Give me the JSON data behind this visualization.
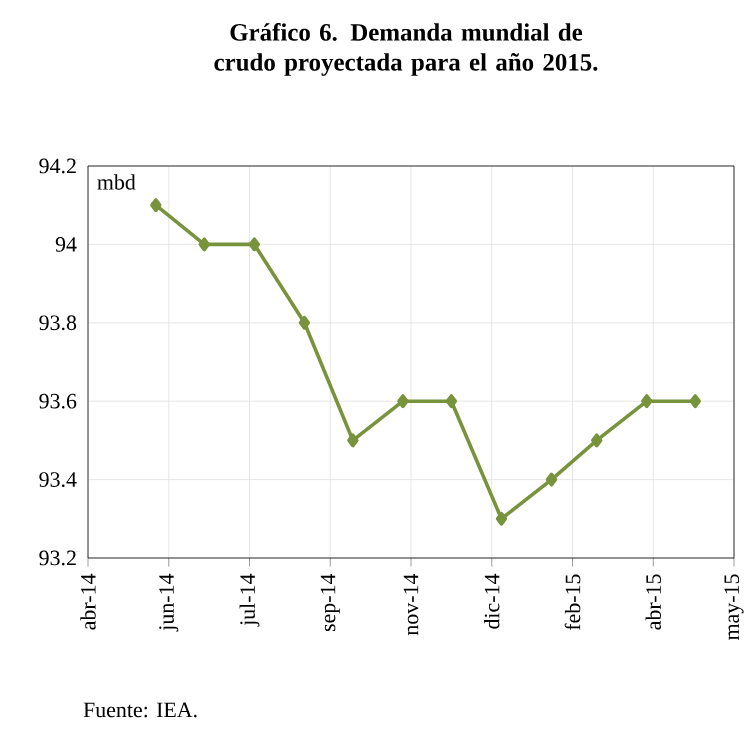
{
  "chart_data": {
    "type": "line",
    "title": "Gráfico 6. Demanda mundial de crudo proyectada para el año 2015.",
    "ylabel": "mbd",
    "x": [
      "2014-06-01",
      "2014-07-01",
      "2014-08-01",
      "2014-09-01",
      "2014-10-01",
      "2014-11-01",
      "2014-12-01",
      "2015-01-01",
      "2015-02-01",
      "2015-03-01",
      "2015-04-01",
      "2015-05-01"
    ],
    "series": [
      {
        "color": "#77933c",
        "values": [
          94.1,
          94.0,
          94.0,
          93.8,
          93.5,
          93.6,
          93.6,
          93.3,
          93.4,
          93.5,
          93.6,
          93.6
        ]
      }
    ],
    "xlim": [
      "2014-04-20",
      "2015-05-25"
    ],
    "xticks": [
      {
        "value": "2014-04-20",
        "label": "abr-14"
      },
      {
        "value": "2014-06-09",
        "label": "jun-14"
      },
      {
        "value": "2014-07-29",
        "label": "jul-14"
      },
      {
        "value": "2014-09-17",
        "label": "sep-14"
      },
      {
        "value": "2014-11-06",
        "label": "nov-14"
      },
      {
        "value": "2014-12-26",
        "label": "dic-14"
      },
      {
        "value": "2015-02-14",
        "label": "feb-15"
      },
      {
        "value": "2015-04-05",
        "label": "abr-15"
      },
      {
        "value": "2015-05-25",
        "label": "may-15"
      }
    ],
    "ylim": [
      93.2,
      94.2
    ],
    "yticks": [
      93.2,
      93.4,
      93.6,
      93.8,
      94,
      94.2
    ],
    "grid": true,
    "marker": "diamond",
    "line_style": "solid",
    "annotations": [
      "Fuente: IEA."
    ]
  }
}
